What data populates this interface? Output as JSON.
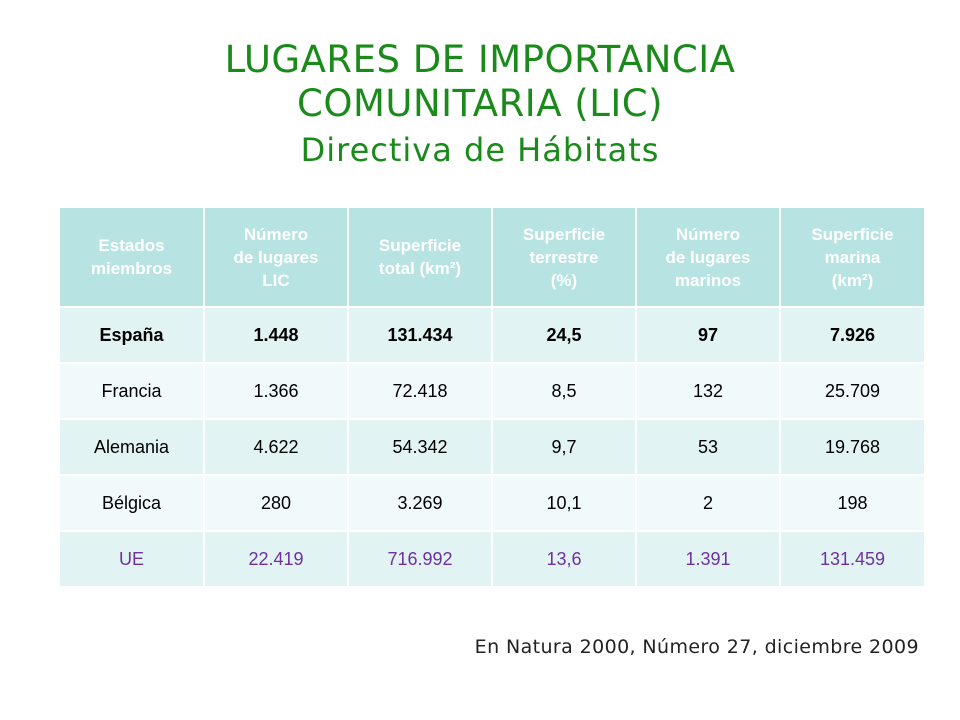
{
  "title": {
    "line1": "LUGARES DE IMPORTANCIA",
    "line2": "COMUNITARIA (LIC)",
    "line3": "Directiva de Hábitats"
  },
  "colors": {
    "title": "#1a8a1a",
    "header_bg": "#b8e3e3",
    "row_odd": "#e1f3f3",
    "row_even": "#f0fafa",
    "ue_text": "#7030a0"
  },
  "table": {
    "headers": [
      [
        "Estados",
        "miembros"
      ],
      [
        "Número",
        "de lugares",
        "LIC"
      ],
      [
        "Superficie",
        "total (km²)"
      ],
      [
        "Superficie",
        "terrestre",
        "(%)"
      ],
      [
        "Número",
        "de lugares",
        "marinos"
      ],
      [
        "Superficie",
        "marina",
        "(km²)"
      ]
    ],
    "rows": [
      [
        "España",
        "1.448",
        "131.434",
        "24,5",
        "97",
        "7.926"
      ],
      [
        "Francia",
        "1.366",
        "72.418",
        "8,5",
        "132",
        "25.709"
      ],
      [
        "Alemania",
        "4.622",
        "54.342",
        "9,7",
        "53",
        "19.768"
      ],
      [
        "Bélgica",
        "280",
        "3.269",
        "10,1",
        "2",
        "198"
      ],
      [
        "UE",
        "22.419",
        "716.992",
        "13,6",
        "1.391",
        "131.459"
      ]
    ]
  },
  "source": "En Natura 2000, Número 27, diciembre 2009"
}
